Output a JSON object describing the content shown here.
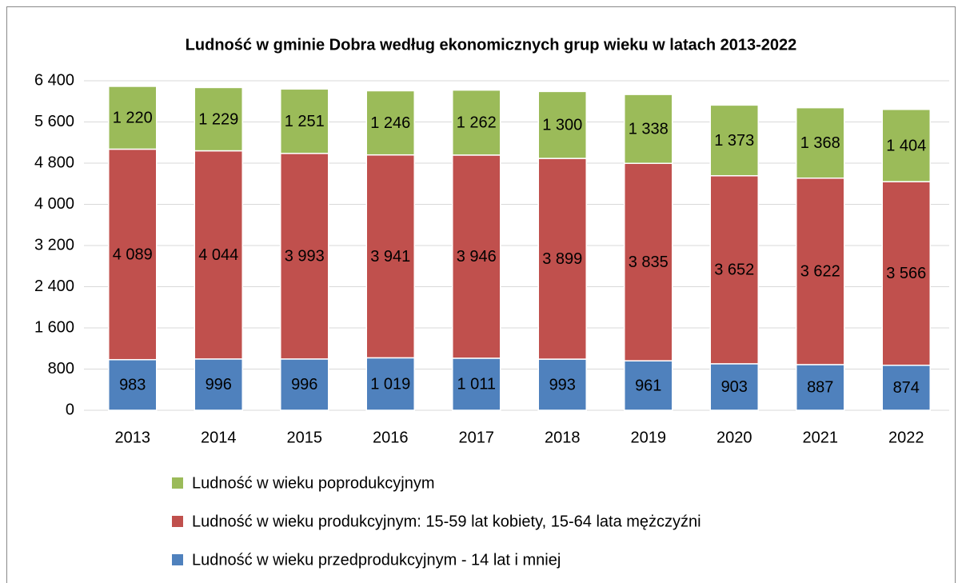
{
  "chart_data": {
    "type": "stacked_bar",
    "title": "Ludność w gminie Dobra według ekonomicznych grup wieku w latach 2013-2022",
    "categories": [
      "2013",
      "2014",
      "2015",
      "2016",
      "2017",
      "2018",
      "2019",
      "2020",
      "2021",
      "2022"
    ],
    "series": [
      {
        "name": "Ludność w wieku przedprodukcyjnym - 14 lat i mniej",
        "color": "#4f81bd",
        "values": [
          983,
          996,
          996,
          1019,
          1011,
          993,
          961,
          903,
          887,
          874
        ],
        "value_labels": [
          "983",
          "996",
          "996",
          "1 019",
          "1 011",
          "993",
          "961",
          "903",
          "887",
          "874"
        ]
      },
      {
        "name": "Ludność w wieku produkcyjnym: 15-59 lat kobiety, 15-64 lata mężczyźni",
        "color": "#c0504d",
        "values": [
          4089,
          4044,
          3993,
          3941,
          3946,
          3899,
          3835,
          3652,
          3622,
          3566
        ],
        "value_labels": [
          "4 089",
          "4 044",
          "3 993",
          "3 941",
          "3 946",
          "3 899",
          "3 835",
          "3 652",
          "3 622",
          "3 566"
        ]
      },
      {
        "name": "Ludność w wieku poprodukcyjnym",
        "color": "#9bbb59",
        "values": [
          1220,
          1229,
          1251,
          1246,
          1262,
          1300,
          1338,
          1373,
          1368,
          1404
        ],
        "value_labels": [
          "1 220",
          "1 229",
          "1 251",
          "1 246",
          "1 262",
          "1 300",
          "1 338",
          "1 373",
          "1 368",
          "1 404"
        ]
      }
    ],
    "ylim": [
      0,
      6400
    ],
    "yticks": [
      0,
      {
        "value": 800,
        "label": "800"
      },
      {
        "value": 1600,
        "label": "1 600"
      },
      {
        "value": 2400,
        "label": "2 400"
      },
      {
        "value": 3200,
        "label": "3 200"
      },
      {
        "value": 4000,
        "label": "4 000"
      },
      {
        "value": 4800,
        "label": "4 800"
      },
      {
        "value": 5600,
        "label": "5 600"
      },
      {
        "value": 6400,
        "label": "6 400"
      }
    ],
    "grid": true
  }
}
